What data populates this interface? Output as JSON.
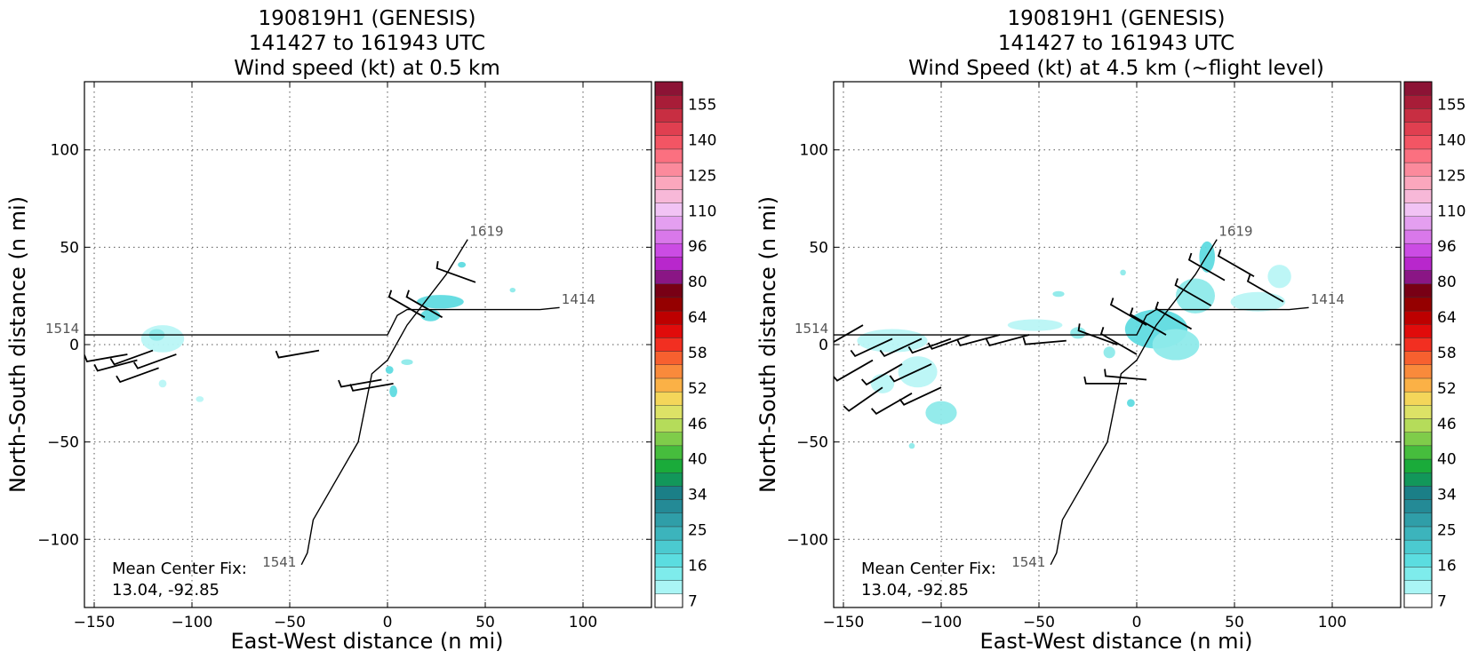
{
  "chart_data": [
    {
      "type": "heatmap",
      "title": [
        "190819H1 (GENESIS)",
        "141427 to 161943 UTC",
        "Wind speed (kt) at 0.5 km"
      ],
      "xlabel": "East-West distance (n mi)",
      "ylabel": "North-South distance (n mi)",
      "xlim": [
        -155,
        135
      ],
      "ylim": [
        -135,
        135
      ],
      "xticks": [
        -150,
        -100,
        -50,
        0,
        50,
        100
      ],
      "yticks": [
        -100,
        -50,
        0,
        50,
        100
      ],
      "grid": true,
      "colorbar": {
        "ticks": [
          "7",
          "16",
          "25",
          "34",
          "40",
          "46",
          "52",
          "58",
          "64",
          "80",
          "96",
          "110",
          "125",
          "140",
          "155"
        ],
        "colors": [
          "#ffffff",
          "#aaf5f5",
          "#7eecec",
          "#5bdde0",
          "#4bcad0",
          "#3cb4bc",
          "#2f9ea8",
          "#248a96",
          "#1b7f87",
          "#12975a",
          "#1aab3a",
          "#46bd3d",
          "#7fcc4a",
          "#b5dc5a",
          "#dde266",
          "#f4d65a",
          "#fbb146",
          "#f98a3b",
          "#f7602f",
          "#f22f21",
          "#e10b0b",
          "#bd0000",
          "#950000",
          "#780015",
          "#8a1685",
          "#b827cc",
          "#cb4ce4",
          "#d978ea",
          "#e49ff0",
          "#f1c3f4",
          "#f7b8d8",
          "#fba7bd",
          "#fb8a9c",
          "#fb7080",
          "#f35564",
          "#e03f50",
          "#c82e42",
          "#a81d38",
          "#8c1335"
        ]
      },
      "track": [
        [
          88,
          19
        ],
        [
          78,
          18
        ],
        [
          60,
          18
        ],
        [
          40,
          18
        ],
        [
          20,
          18
        ],
        [
          10,
          18
        ],
        [
          5,
          15
        ],
        [
          2,
          9
        ],
        [
          0,
          5
        ],
        [
          -10,
          5
        ],
        [
          -40,
          5
        ],
        [
          -80,
          5
        ],
        [
          -130,
          5
        ],
        [
          -155,
          5
        ]
      ],
      "track2": [
        [
          41,
          54
        ],
        [
          30,
          36
        ],
        [
          10,
          10
        ],
        [
          0,
          -8
        ],
        [
          -8,
          -15
        ],
        [
          -15,
          -50
        ],
        [
          -38,
          -90
        ],
        [
          -41,
          -107
        ],
        [
          -44,
          -113
        ]
      ],
      "track_labels": [
        {
          "text": "1619",
          "x": 42,
          "y": 55
        },
        {
          "text": "1414",
          "x": 89,
          "y": 20
        },
        {
          "text": "1514",
          "x": -175,
          "y": 5
        },
        {
          "text": "1541",
          "x": -64,
          "y": -115
        }
      ],
      "wind_patches": [
        {
          "x": -115,
          "y": 3,
          "rx": 11,
          "ry": 7,
          "level": 1
        },
        {
          "x": -118,
          "y": 5,
          "rx": 4,
          "ry": 3,
          "level": 2
        },
        {
          "x": -115,
          "y": -20,
          "rx": 2,
          "ry": 2,
          "level": 1
        },
        {
          "x": -96,
          "y": -28,
          "rx": 2,
          "ry": 1.5,
          "level": 1
        },
        {
          "x": 27,
          "y": 22,
          "rx": 12,
          "ry": 3.5,
          "level": 3
        },
        {
          "x": 22,
          "y": 15,
          "rx": 5,
          "ry": 3,
          "level": 3
        },
        {
          "x": 38,
          "y": 41,
          "rx": 2,
          "ry": 1.5,
          "level": 3
        },
        {
          "x": 64,
          "y": 28,
          "rx": 1.5,
          "ry": 1.2,
          "level": 2
        },
        {
          "x": 3,
          "y": -24,
          "rx": 2,
          "ry": 3,
          "level": 3
        },
        {
          "x": 10,
          "y": -9,
          "rx": 3,
          "ry": 1.5,
          "level": 2
        },
        {
          "x": 1,
          "y": -13,
          "rx": 2,
          "ry": 2,
          "level": 3
        }
      ],
      "barbs": [
        {
          "x": -133,
          "y": -5,
          "dir": 260,
          "len": 14
        },
        {
          "x": -128,
          "y": -8,
          "dir": 255,
          "len": 14
        },
        {
          "x": -120,
          "y": -3,
          "dir": 250,
          "len": 14
        },
        {
          "x": -117,
          "y": -12,
          "dir": 250,
          "len": 14
        },
        {
          "x": -108,
          "y": -5,
          "dir": 250,
          "len": 14
        },
        {
          "x": -35,
          "y": -3,
          "dir": 260,
          "len": 14
        },
        {
          "x": 19,
          "y": 14,
          "dir": 300,
          "len": 14
        },
        {
          "x": 28,
          "y": 14,
          "dir": 300,
          "len": 14
        },
        {
          "x": 45,
          "y": 32,
          "dir": 290,
          "len": 14
        },
        {
          "x": -3,
          "y": -18,
          "dir": 260,
          "len": 14
        },
        {
          "x": 3,
          "y": -20,
          "dir": 260,
          "len": 14
        }
      ],
      "fix_text": [
        "Mean Center Fix:",
        "13.04, -92.85"
      ]
    },
    {
      "type": "heatmap",
      "title": [
        "190819H1 (GENESIS)",
        "141427 to 161943 UTC",
        "Wind Speed (kt) at 4.5 km (~flight level)"
      ],
      "xlabel": "East-West distance (n mi)",
      "ylabel": "North-South distance (n mi)",
      "xlim": [
        -155,
        135
      ],
      "ylim": [
        -135,
        135
      ],
      "xticks": [
        -150,
        -100,
        -50,
        0,
        50,
        100
      ],
      "yticks": [
        -100,
        -50,
        0,
        50,
        100
      ],
      "grid": true,
      "colorbar": {
        "ticks": [
          "7",
          "16",
          "25",
          "34",
          "40",
          "46",
          "52",
          "58",
          "64",
          "80",
          "96",
          "110",
          "125",
          "140",
          "155"
        ],
        "colors": [
          "#ffffff",
          "#aaf5f5",
          "#7eecec",
          "#5bdde0",
          "#4bcad0",
          "#3cb4bc",
          "#2f9ea8",
          "#248a96",
          "#1b7f87",
          "#12975a",
          "#1aab3a",
          "#46bd3d",
          "#7fcc4a",
          "#b5dc5a",
          "#dde266",
          "#f4d65a",
          "#fbb146",
          "#f98a3b",
          "#f7602f",
          "#f22f21",
          "#e10b0b",
          "#bd0000",
          "#950000",
          "#780015",
          "#8a1685",
          "#b827cc",
          "#cb4ce4",
          "#d978ea",
          "#e49ff0",
          "#f1c3f4",
          "#f7b8d8",
          "#fba7bd",
          "#fb8a9c",
          "#fb7080",
          "#f35564",
          "#e03f50",
          "#c82e42",
          "#a81d38",
          "#8c1335"
        ]
      },
      "track": [
        [
          88,
          19
        ],
        [
          78,
          18
        ],
        [
          60,
          18
        ],
        [
          40,
          18
        ],
        [
          20,
          18
        ],
        [
          10,
          18
        ],
        [
          5,
          15
        ],
        [
          2,
          9
        ],
        [
          0,
          5
        ],
        [
          -10,
          5
        ],
        [
          -40,
          5
        ],
        [
          -80,
          5
        ],
        [
          -130,
          5
        ],
        [
          -155,
          5
        ]
      ],
      "track2": [
        [
          41,
          54
        ],
        [
          30,
          36
        ],
        [
          10,
          10
        ],
        [
          0,
          -8
        ],
        [
          -8,
          -15
        ],
        [
          -15,
          -50
        ],
        [
          -38,
          -90
        ],
        [
          -41,
          -107
        ],
        [
          -44,
          -113
        ]
      ],
      "track_labels": [
        {
          "text": "1619",
          "x": 42,
          "y": 55
        },
        {
          "text": "1414",
          "x": 89,
          "y": 20
        },
        {
          "text": "1514",
          "x": -175,
          "y": 5
        },
        {
          "text": "1541",
          "x": -64,
          "y": -115
        }
      ],
      "wind_patches": [
        {
          "x": -125,
          "y": 2,
          "rx": 18,
          "ry": 6,
          "level": 1
        },
        {
          "x": -112,
          "y": -14,
          "rx": 10,
          "ry": 8,
          "level": 1
        },
        {
          "x": -100,
          "y": -35,
          "rx": 8,
          "ry": 6,
          "level": 2
        },
        {
          "x": -130,
          "y": -20,
          "rx": 6,
          "ry": 5,
          "level": 1
        },
        {
          "x": -52,
          "y": 10,
          "rx": 14,
          "ry": 3,
          "level": 1
        },
        {
          "x": -30,
          "y": 6,
          "rx": 4,
          "ry": 3,
          "level": 2
        },
        {
          "x": -40,
          "y": 26,
          "rx": 3,
          "ry": 1.5,
          "level": 2
        },
        {
          "x": 10,
          "y": 8,
          "rx": 16,
          "ry": 10,
          "level": 3
        },
        {
          "x": 20,
          "y": 0,
          "rx": 12,
          "ry": 8,
          "level": 2
        },
        {
          "x": 30,
          "y": 25,
          "rx": 10,
          "ry": 9,
          "level": 2
        },
        {
          "x": 36,
          "y": 45,
          "rx": 4,
          "ry": 8,
          "level": 3
        },
        {
          "x": 62,
          "y": 22,
          "rx": 14,
          "ry": 5,
          "level": 1
        },
        {
          "x": 73,
          "y": 35,
          "rx": 6,
          "ry": 6,
          "level": 1
        },
        {
          "x": -14,
          "y": -4,
          "rx": 3,
          "ry": 3,
          "level": 2
        },
        {
          "x": -3,
          "y": -30,
          "rx": 2,
          "ry": 2,
          "level": 3
        },
        {
          "x": -7,
          "y": 37,
          "rx": 1.5,
          "ry": 1.5,
          "level": 2
        },
        {
          "x": -115,
          "y": -52,
          "rx": 1.5,
          "ry": 1.5,
          "level": 2
        }
      ],
      "barbs": [
        {
          "x": -140,
          "y": 10,
          "dir": 240,
          "len": 14
        },
        {
          "x": -125,
          "y": 3,
          "dir": 245,
          "len": 14
        },
        {
          "x": -110,
          "y": 3,
          "dir": 245,
          "len": 14
        },
        {
          "x": -95,
          "y": 3,
          "dir": 250,
          "len": 14
        },
        {
          "x": -135,
          "y": -8,
          "dir": 240,
          "len": 14
        },
        {
          "x": -120,
          "y": -10,
          "dir": 240,
          "len": 14
        },
        {
          "x": -105,
          "y": -10,
          "dir": 245,
          "len": 14
        },
        {
          "x": -130,
          "y": -22,
          "dir": 235,
          "len": 14
        },
        {
          "x": -115,
          "y": -25,
          "dir": 240,
          "len": 14
        },
        {
          "x": -100,
          "y": -22,
          "dir": 245,
          "len": 14
        },
        {
          "x": -85,
          "y": 5,
          "dir": 250,
          "len": 14
        },
        {
          "x": -70,
          "y": 5,
          "dir": 255,
          "len": 14
        },
        {
          "x": -55,
          "y": 5,
          "dir": 255,
          "len": 14
        },
        {
          "x": -36,
          "y": 2,
          "dir": 265,
          "len": 14
        },
        {
          "x": -10,
          "y": 0,
          "dir": 290,
          "len": 14
        },
        {
          "x": 0,
          "y": -5,
          "dir": 300,
          "len": 14
        },
        {
          "x": 5,
          "y": 10,
          "dir": 300,
          "len": 14
        },
        {
          "x": 15,
          "y": 5,
          "dir": 300,
          "len": 14
        },
        {
          "x": 28,
          "y": 8,
          "dir": 300,
          "len": 14
        },
        {
          "x": 38,
          "y": 20,
          "dir": 300,
          "len": 14
        },
        {
          "x": 45,
          "y": 33,
          "dir": 300,
          "len": 14
        },
        {
          "x": 60,
          "y": 35,
          "dir": 300,
          "len": 14
        },
        {
          "x": 75,
          "y": 22,
          "dir": 300,
          "len": 14
        },
        {
          "x": -5,
          "y": -20,
          "dir": 270,
          "len": 14
        },
        {
          "x": 5,
          "y": -18,
          "dir": 275,
          "len": 14
        }
      ],
      "fix_text": [
        "Mean Center Fix:",
        "13.04, -92.85"
      ]
    }
  ]
}
